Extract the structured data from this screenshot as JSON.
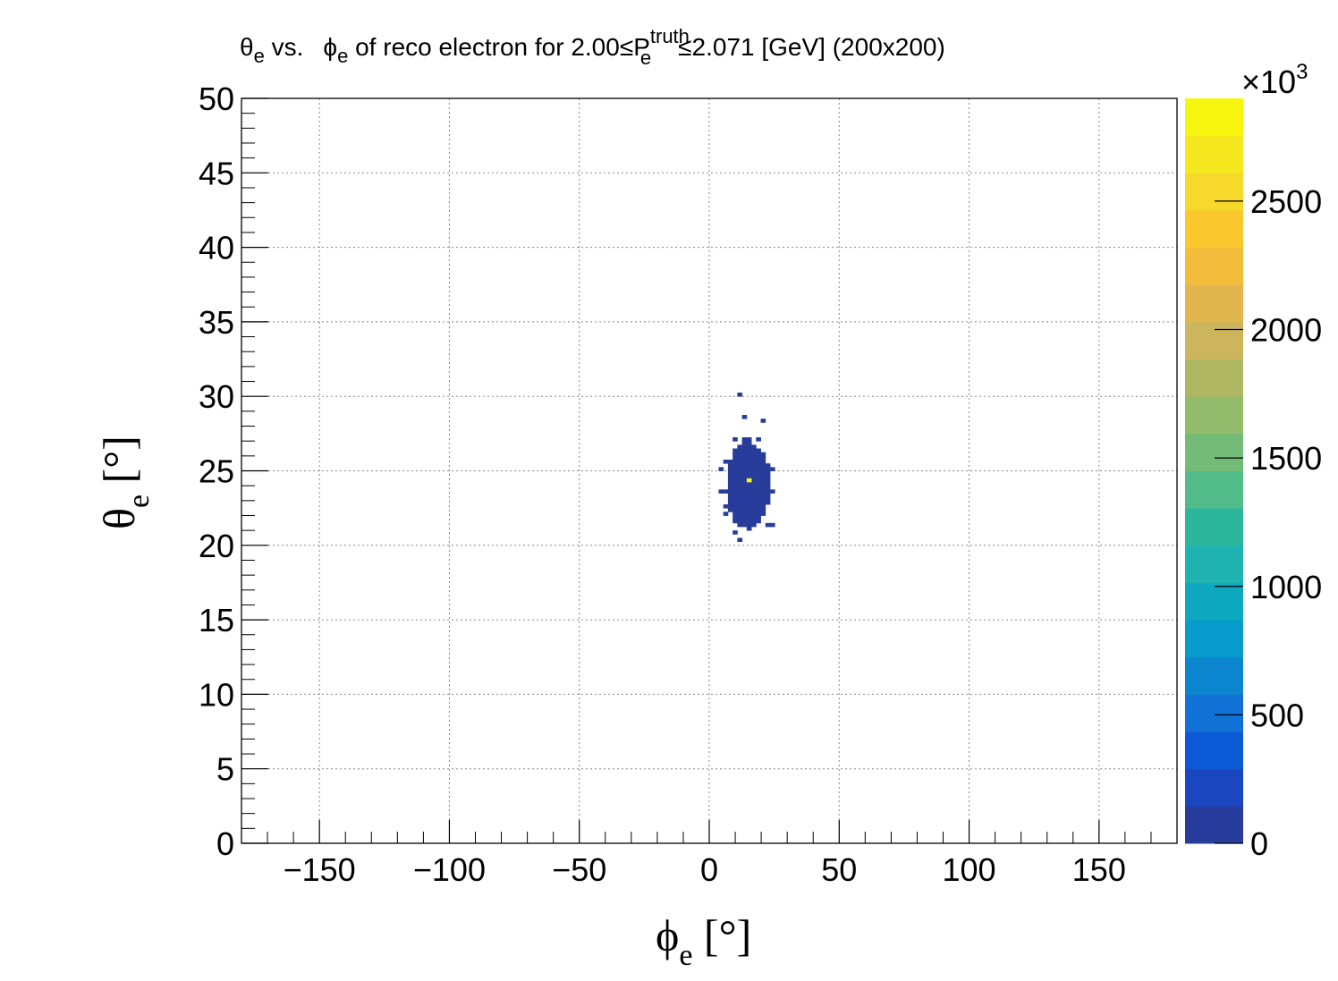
{
  "chart_data": {
    "type": "heatmap",
    "title": {
      "theta": "θ",
      "theta_sub": "e",
      "vs": " vs.",
      "phi": "ϕ",
      "phi_sub": "e",
      "middle": " of reco electron for  2.00≤P",
      "p_sup": "truth",
      "p_sub": "e",
      "end": "≤2.071 [GeV] (200x200)"
    },
    "xlabel": {
      "main": "ϕ",
      "sub": "e",
      "unit": " [°]"
    },
    "ylabel": {
      "main": "θ",
      "sub": "e",
      "unit": " [°]"
    },
    "xlim": [
      -180,
      180
    ],
    "ylim": [
      0,
      50
    ],
    "x_ticks": [
      -150,
      -100,
      -50,
      0,
      50,
      100,
      150
    ],
    "x_tick_labels": [
      "−150",
      "−100",
      "−50",
      "0",
      "50",
      "100",
      "150"
    ],
    "y_ticks": [
      0,
      5,
      10,
      15,
      20,
      25,
      30,
      35,
      40,
      45,
      50
    ],
    "y_tick_labels": [
      "0",
      "5",
      "10",
      "15",
      "20",
      "25",
      "30",
      "35",
      "40",
      "45",
      "50"
    ],
    "grid": true,
    "bins": [
      200,
      200
    ],
    "colorbar": {
      "range": [
        0,
        2900
      ],
      "ticks": [
        0,
        500,
        1000,
        1500,
        2000,
        2500
      ],
      "tick_labels": [
        "0",
        "500",
        "1000",
        "1500",
        "2000",
        "2500"
      ],
      "multiplier": "×10",
      "multiplier_exp": "3",
      "palette": [
        "#283c9c",
        "#1a47c0",
        "#0d5ad6",
        "#1271d6",
        "#0d86d0",
        "#079ccb",
        "#0ea9c0",
        "#1eb3b0",
        "#2cb79d",
        "#52bb8a",
        "#74bb78",
        "#93bb6c",
        "#afb762",
        "#ccb55d",
        "#e0b64d",
        "#f3bc3b",
        "#fbc72f",
        "#f6d92b",
        "#f6e81f",
        "#f6f60e"
      ]
    },
    "cells": [
      {
        "phi": 10.8,
        "theta": 30.0,
        "value": 40
      },
      {
        "phi": 12.6,
        "theta": 28.6,
        "value": 40
      },
      {
        "phi": 19.8,
        "theta": 28.4,
        "value": 40
      },
      {
        "phi": 9.0,
        "theta": 27.1,
        "value": 60
      },
      {
        "phi": 12.6,
        "theta": 27.1,
        "value": 60
      },
      {
        "phi": 16.2,
        "theta": 27.1,
        "value": 60
      },
      {
        "phi": 18.0,
        "theta": 27.1,
        "value": 60
      },
      {
        "phi": 5.4,
        "theta": 25.6,
        "value": 60
      },
      {
        "phi": 3.6,
        "theta": 25.1,
        "value": 60
      },
      {
        "phi": 7.2,
        "theta": 23.6,
        "value": 60
      },
      {
        "phi": 3.6,
        "theta": 23.6,
        "value": 60
      },
      {
        "phi": 5.4,
        "theta": 22.6,
        "value": 60
      },
      {
        "phi": 5.4,
        "theta": 22.1,
        "value": 60
      },
      {
        "phi": 9.0,
        "theta": 21.6,
        "value": 60
      },
      {
        "phi": 21.6,
        "theta": 21.4,
        "value": 60
      },
      {
        "phi": 9.0,
        "theta": 20.9,
        "value": 60
      },
      {
        "phi": 10.8,
        "theta": 20.4,
        "value": 60
      },
      {
        "phi": 14.4,
        "theta": 21.1,
        "value": 60
      },
      {
        "phi": 23.4,
        "theta": 21.4,
        "value": 60
      },
      {
        "phi": 23.4,
        "theta": 25.1,
        "value": 60
      },
      {
        "phi": 23.4,
        "theta": 23.6,
        "value": 60
      },
      {
        "phi": 16.2,
        "theta": 24.4,
        "value": 2800
      }
    ],
    "blob": {
      "center_phi": 15.0,
      "center_theta": 24.0,
      "half_width_phi": 8.6,
      "half_height_theta": 2.9,
      "value": 80
    }
  }
}
